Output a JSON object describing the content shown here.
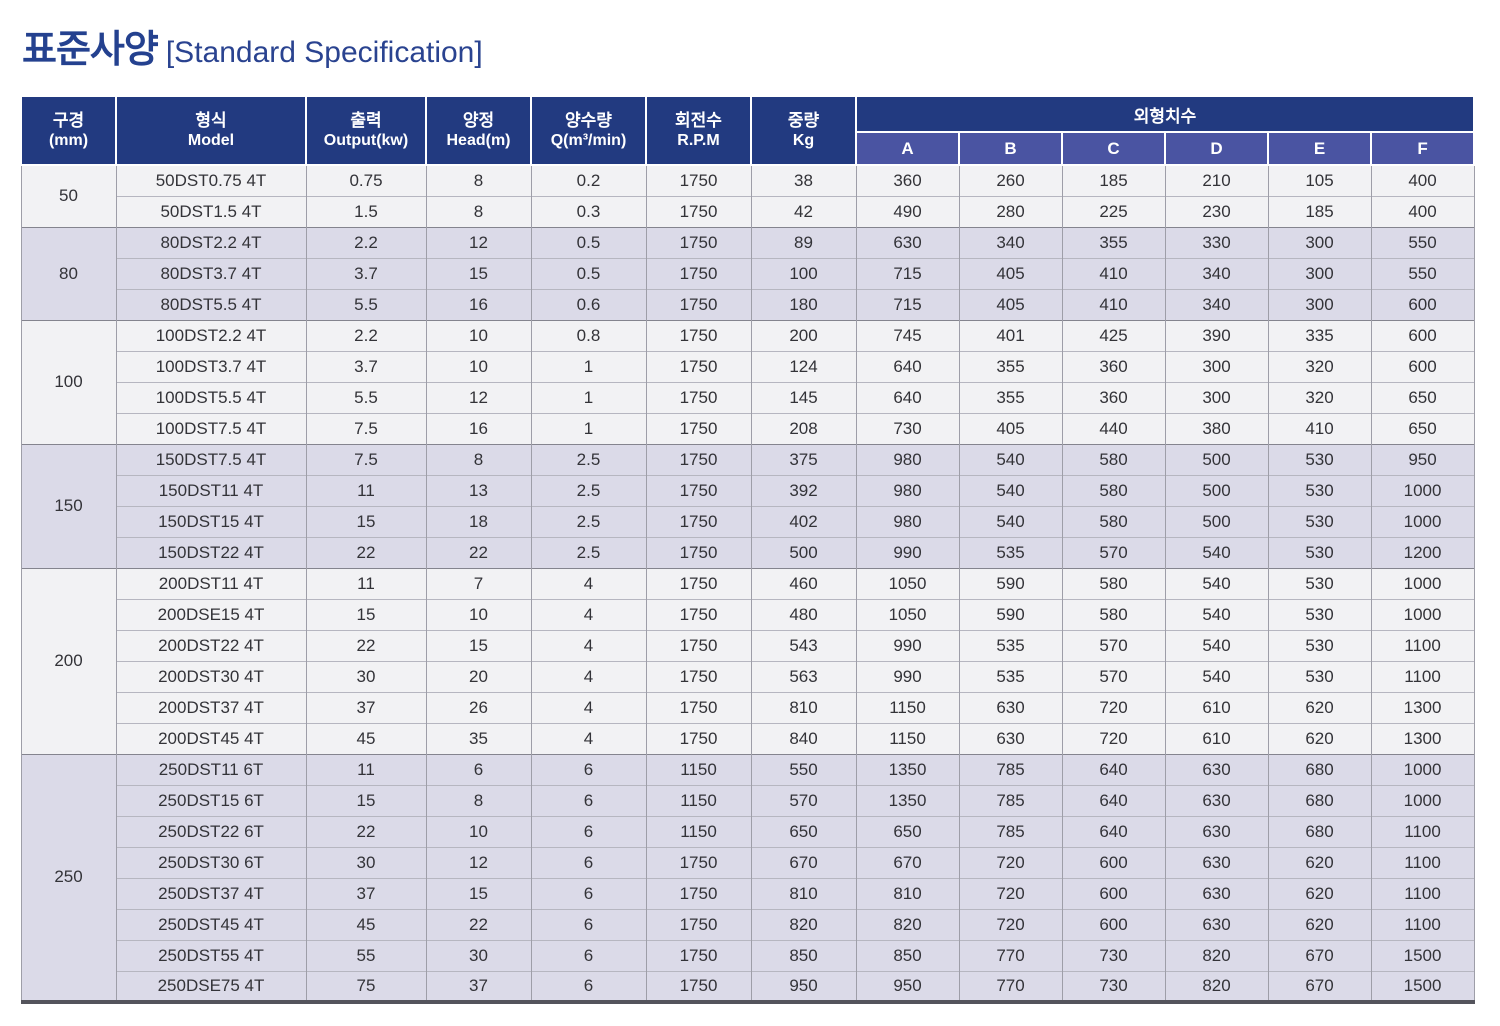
{
  "title": {
    "ko": "표준사양",
    "en": "[Standard Specification]"
  },
  "colors": {
    "title_navy": "#24418F",
    "header_navy": "#223A80",
    "subheader_indigo": "#4A54A2",
    "group_bg_light": "#F2F2F4",
    "group_bg_lavender": "#DBDAE8",
    "table_bottom_border": "#54545C"
  },
  "table": {
    "headers": {
      "diameter": {
        "ko": "구경",
        "en": "(mm)"
      },
      "model": {
        "ko": "형식",
        "en": "Model"
      },
      "output": {
        "ko": "출력",
        "en": "Output(kw)"
      },
      "head": {
        "ko": "양정",
        "en": "Head(m)"
      },
      "flow": {
        "ko": "양수량",
        "en": "Q(m³/min)"
      },
      "rpm": {
        "ko": "회전수",
        "en": "R.P.M"
      },
      "weight": {
        "ko": "중량",
        "en": "Kg"
      },
      "dimensions": {
        "ko": "외형치수",
        "sub": [
          "A",
          "B",
          "C",
          "D",
          "E",
          "F"
        ]
      }
    },
    "groups": [
      {
        "diameter": "50",
        "rows": [
          {
            "model": "50DST0.75 4T",
            "output": "0.75",
            "head": "8",
            "q": "0.2",
            "rpm": "1750",
            "kg": "38",
            "dims": [
              "360",
              "260",
              "185",
              "210",
              "105",
              "400"
            ]
          },
          {
            "model": "50DST1.5 4T",
            "output": "1.5",
            "head": "8",
            "q": "0.3",
            "rpm": "1750",
            "kg": "42",
            "dims": [
              "490",
              "280",
              "225",
              "230",
              "185",
              "400"
            ]
          }
        ]
      },
      {
        "diameter": "80",
        "rows": [
          {
            "model": "80DST2.2 4T",
            "output": "2.2",
            "head": "12",
            "q": "0.5",
            "rpm": "1750",
            "kg": "89",
            "dims": [
              "630",
              "340",
              "355",
              "330",
              "300",
              "550"
            ]
          },
          {
            "model": "80DST3.7 4T",
            "output": "3.7",
            "head": "15",
            "q": "0.5",
            "rpm": "1750",
            "kg": "100",
            "dims": [
              "715",
              "405",
              "410",
              "340",
              "300",
              "550"
            ]
          },
          {
            "model": "80DST5.5 4T",
            "output": "5.5",
            "head": "16",
            "q": "0.6",
            "rpm": "1750",
            "kg": "180",
            "dims": [
              "715",
              "405",
              "410",
              "340",
              "300",
              "600"
            ]
          }
        ]
      },
      {
        "diameter": "100",
        "rows": [
          {
            "model": "100DST2.2 4T",
            "output": "2.2",
            "head": "10",
            "q": "0.8",
            "rpm": "1750",
            "kg": "200",
            "dims": [
              "745",
              "401",
              "425",
              "390",
              "335",
              "600"
            ]
          },
          {
            "model": "100DST3.7 4T",
            "output": "3.7",
            "head": "10",
            "q": "1",
            "rpm": "1750",
            "kg": "124",
            "dims": [
              "640",
              "355",
              "360",
              "300",
              "320",
              "600"
            ]
          },
          {
            "model": "100DST5.5 4T",
            "output": "5.5",
            "head": "12",
            "q": "1",
            "rpm": "1750",
            "kg": "145",
            "dims": [
              "640",
              "355",
              "360",
              "300",
              "320",
              "650"
            ]
          },
          {
            "model": "100DST7.5 4T",
            "output": "7.5",
            "head": "16",
            "q": "1",
            "rpm": "1750",
            "kg": "208",
            "dims": [
              "730",
              "405",
              "440",
              "380",
              "410",
              "650"
            ]
          }
        ]
      },
      {
        "diameter": "150",
        "rows": [
          {
            "model": "150DST7.5 4T",
            "output": "7.5",
            "head": "8",
            "q": "2.5",
            "rpm": "1750",
            "kg": "375",
            "dims": [
              "980",
              "540",
              "580",
              "500",
              "530",
              "950"
            ]
          },
          {
            "model": "150DST11 4T",
            "output": "11",
            "head": "13",
            "q": "2.5",
            "rpm": "1750",
            "kg": "392",
            "dims": [
              "980",
              "540",
              "580",
              "500",
              "530",
              "1000"
            ]
          },
          {
            "model": "150DST15 4T",
            "output": "15",
            "head": "18",
            "q": "2.5",
            "rpm": "1750",
            "kg": "402",
            "dims": [
              "980",
              "540",
              "580",
              "500",
              "530",
              "1000"
            ]
          },
          {
            "model": "150DST22 4T",
            "output": "22",
            "head": "22",
            "q": "2.5",
            "rpm": "1750",
            "kg": "500",
            "dims": [
              "990",
              "535",
              "570",
              "540",
              "530",
              "1200"
            ]
          }
        ]
      },
      {
        "diameter": "200",
        "rows": [
          {
            "model": "200DST11 4T",
            "output": "11",
            "head": "7",
            "q": "4",
            "rpm": "1750",
            "kg": "460",
            "dims": [
              "1050",
              "590",
              "580",
              "540",
              "530",
              "1000"
            ]
          },
          {
            "model": "200DSE15 4T",
            "output": "15",
            "head": "10",
            "q": "4",
            "rpm": "1750",
            "kg": "480",
            "dims": [
              "1050",
              "590",
              "580",
              "540",
              "530",
              "1000"
            ]
          },
          {
            "model": "200DST22 4T",
            "output": "22",
            "head": "15",
            "q": "4",
            "rpm": "1750",
            "kg": "543",
            "dims": [
              "990",
              "535",
              "570",
              "540",
              "530",
              "1100"
            ]
          },
          {
            "model": "200DST30 4T",
            "output": "30",
            "head": "20",
            "q": "4",
            "rpm": "1750",
            "kg": "563",
            "dims": [
              "990",
              "535",
              "570",
              "540",
              "530",
              "1100"
            ]
          },
          {
            "model": "200DST37 4T",
            "output": "37",
            "head": "26",
            "q": "4",
            "rpm": "1750",
            "kg": "810",
            "dims": [
              "1150",
              "630",
              "720",
              "610",
              "620",
              "1300"
            ]
          },
          {
            "model": "200DST45 4T",
            "output": "45",
            "head": "35",
            "q": "4",
            "rpm": "1750",
            "kg": "840",
            "dims": [
              "1150",
              "630",
              "720",
              "610",
              "620",
              "1300"
            ]
          }
        ]
      },
      {
        "diameter": "250",
        "rows": [
          {
            "model": "250DST11 6T",
            "output": "11",
            "head": "6",
            "q": "6",
            "rpm": "1150",
            "kg": "550",
            "dims": [
              "1350",
              "785",
              "640",
              "630",
              "680",
              "1000"
            ]
          },
          {
            "model": "250DST15 6T",
            "output": "15",
            "head": "8",
            "q": "6",
            "rpm": "1150",
            "kg": "570",
            "dims": [
              "1350",
              "785",
              "640",
              "630",
              "680",
              "1000"
            ]
          },
          {
            "model": "250DST22 6T",
            "output": "22",
            "head": "10",
            "q": "6",
            "rpm": "1150",
            "kg": "650",
            "dims": [
              "650",
              "785",
              "640",
              "630",
              "680",
              "1100"
            ]
          },
          {
            "model": "250DST30 6T",
            "output": "30",
            "head": "12",
            "q": "6",
            "rpm": "1750",
            "kg": "670",
            "dims": [
              "670",
              "720",
              "600",
              "630",
              "620",
              "1100"
            ]
          },
          {
            "model": "250DST37 4T",
            "output": "37",
            "head": "15",
            "q": "6",
            "rpm": "1750",
            "kg": "810",
            "dims": [
              "810",
              "720",
              "600",
              "630",
              "620",
              "1100"
            ]
          },
          {
            "model": "250DST45 4T",
            "output": "45",
            "head": "22",
            "q": "6",
            "rpm": "1750",
            "kg": "820",
            "dims": [
              "820",
              "720",
              "600",
              "630",
              "620",
              "1100"
            ]
          },
          {
            "model": "250DST55 4T",
            "output": "55",
            "head": "30",
            "q": "6",
            "rpm": "1750",
            "kg": "850",
            "dims": [
              "850",
              "770",
              "730",
              "820",
              "670",
              "1500"
            ]
          },
          {
            "model": "250DSE75 4T",
            "output": "75",
            "head": "37",
            "q": "6",
            "rpm": "1750",
            "kg": "950",
            "dims": [
              "950",
              "770",
              "730",
              "820",
              "670",
              "1500"
            ]
          }
        ]
      }
    ]
  }
}
